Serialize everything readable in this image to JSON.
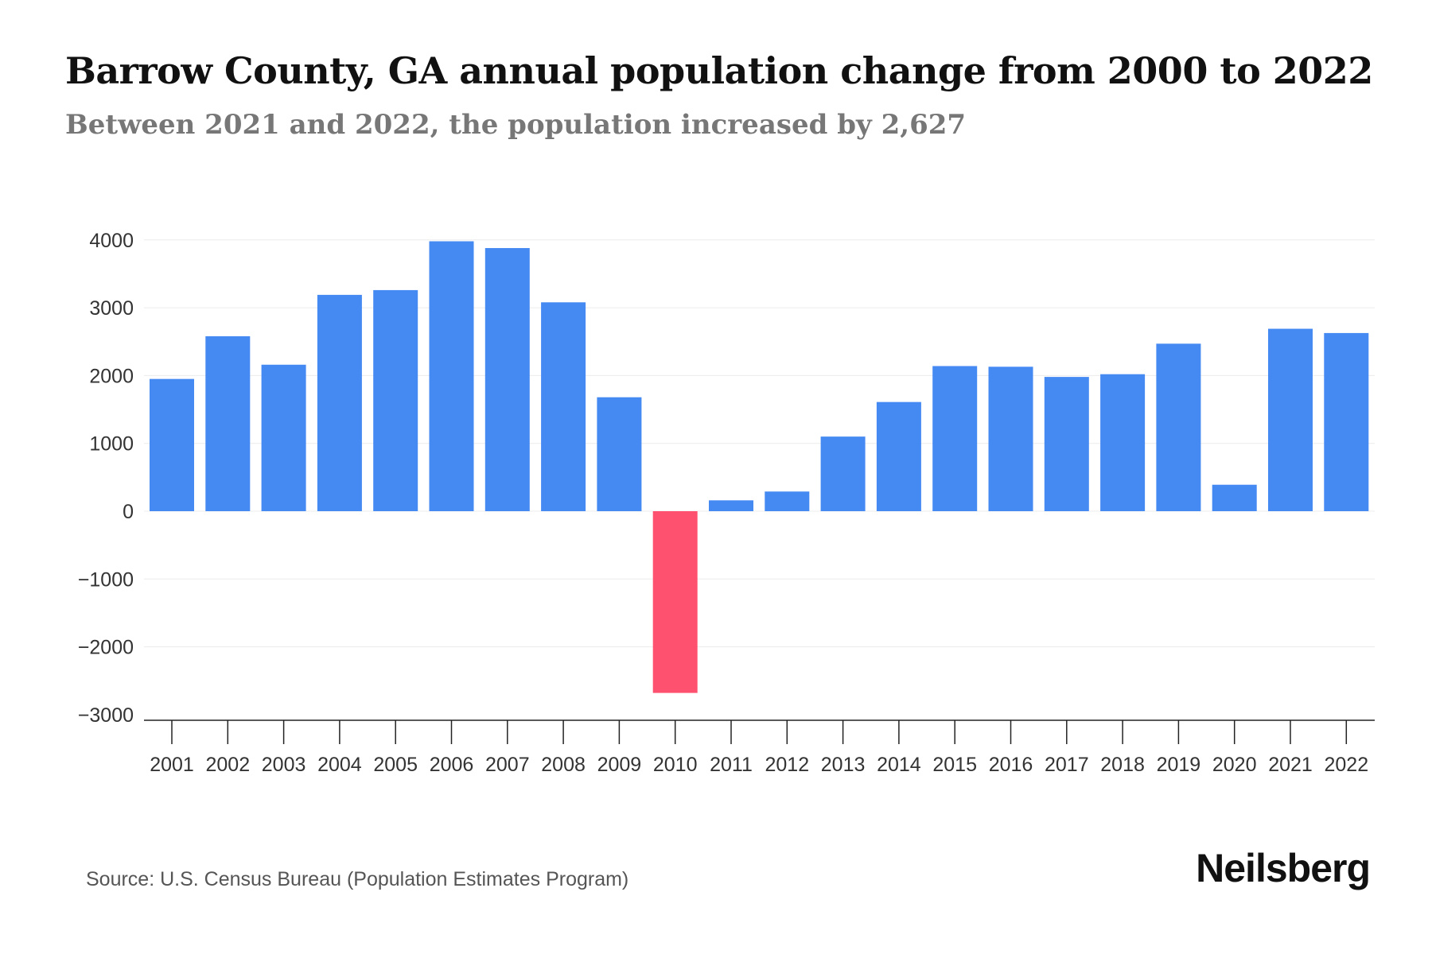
{
  "chart_data": {
    "type": "bar",
    "title": "Barrow County, GA annual population change from 2000 to 2022",
    "subtitle": "Between 2021 and 2022, the population increased by 2,627",
    "xlabel": "",
    "ylabel": "",
    "categories": [
      "2001",
      "2002",
      "2003",
      "2004",
      "2005",
      "2006",
      "2007",
      "2008",
      "2009",
      "2010",
      "2011",
      "2012",
      "2013",
      "2014",
      "2015",
      "2016",
      "2017",
      "2018",
      "2019",
      "2020",
      "2021",
      "2022"
    ],
    "values": [
      1950,
      2580,
      2160,
      3190,
      3260,
      3980,
      3880,
      3080,
      1680,
      -2680,
      160,
      290,
      1100,
      1610,
      2140,
      2130,
      1980,
      2020,
      2470,
      390,
      2690,
      2627
    ],
    "ylim": [
      -3000,
      4000
    ],
    "yticks": [
      4000,
      3000,
      2000,
      1000,
      0,
      -1000,
      -2000,
      -3000
    ],
    "ytick_labels": [
      "4000",
      "3000",
      "2000",
      "1000",
      "0",
      "−1000",
      "−2000",
      "−3000"
    ],
    "grid": true,
    "colors": {
      "positive": "#4589f3",
      "negative": "#fd516f"
    }
  },
  "source": "Source: U.S. Census Bureau (Population Estimates Program)",
  "brand": "Neilsberg"
}
